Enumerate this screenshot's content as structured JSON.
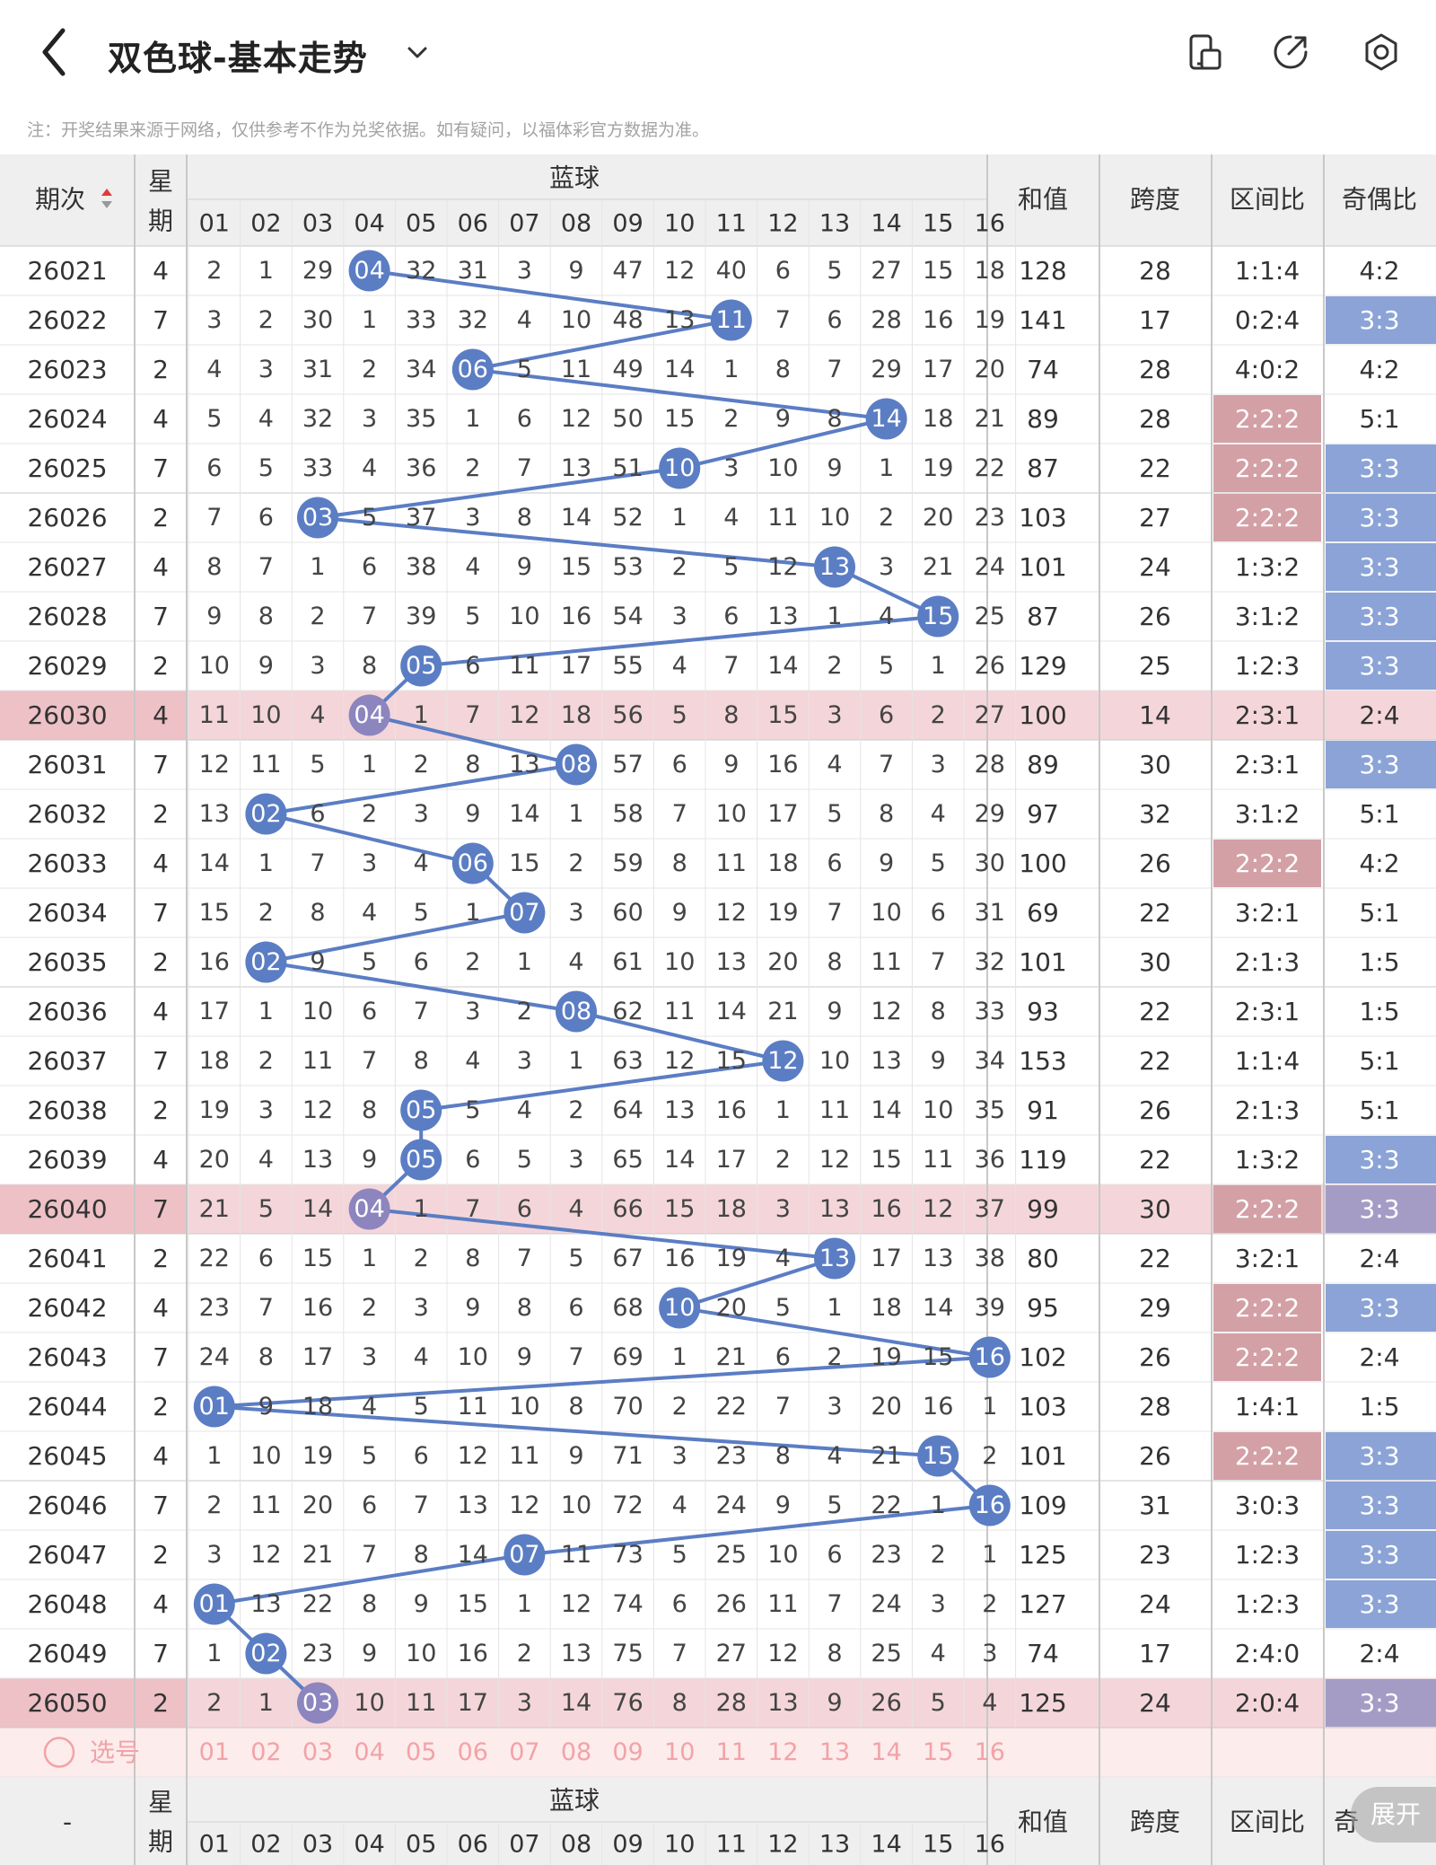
{
  "app": {
    "title": "双色球-基本走势",
    "note": "注：开奖结果来源于网络，仅供参考不作为兑奖依据。如有疑问，以福体彩官方数据为准。"
  },
  "icons": {
    "back": "back-arrow-icon",
    "dropdown": "chevron-down-icon",
    "toolbar": [
      "phone-layout-icon",
      "share-icon",
      "settings-icon"
    ]
  },
  "colors": {
    "ball_blue": "#5b7dc4",
    "ball_purple": "#8c85be",
    "line_blue": "#5b7dc4",
    "highlight_row": "#f4d6da",
    "highlight_sticky": "#edc1c6",
    "odd_even_blue": "#8ba3d6",
    "odd_even_purple": "#a59cc6",
    "zone_red": "#d3a0a6",
    "header_bg": "#efefef",
    "select_row": "#fdecec",
    "select_text": "#f1a3a8"
  },
  "header": {
    "period": "期次",
    "weekday": "星期",
    "blue_group": "蓝球",
    "sum": "和值",
    "span": "跨度",
    "zone_ratio": "区间比",
    "odd_even": "奇偶比",
    "col_labels": [
      "01",
      "02",
      "03",
      "04",
      "05",
      "06",
      "07",
      "08",
      "09",
      "10",
      "11",
      "12",
      "13",
      "14",
      "15",
      "16"
    ]
  },
  "footer": {
    "period": "-",
    "weekday": "星期",
    "blue_group": "蓝球",
    "sum": "和值",
    "span": "跨度",
    "zone_ratio": "区间比",
    "odd_even": "奇",
    "expand_button": "展开"
  },
  "select_row": {
    "label": "选号",
    "numbers": [
      "01",
      "02",
      "03",
      "04",
      "05",
      "06",
      "07",
      "08",
      "09",
      "10",
      "11",
      "12",
      "13",
      "14",
      "15",
      "16"
    ]
  },
  "rows": [
    {
      "period": "26021",
      "weekday": "4",
      "cells": [
        2,
        1,
        29,
        "04",
        32,
        31,
        3,
        9,
        47,
        12,
        40,
        6,
        5,
        27,
        15,
        18
      ],
      "sum": "128",
      "span": "28",
      "zone": "1:1:4",
      "oe": "4:2",
      "ball": 4
    },
    {
      "period": "26022",
      "weekday": "7",
      "cells": [
        3,
        2,
        30,
        1,
        33,
        32,
        4,
        10,
        48,
        13,
        "11",
        7,
        6,
        28,
        16,
        19
      ],
      "sum": "141",
      "span": "17",
      "zone": "0:2:4",
      "oe": "3:3",
      "ball": 11
    },
    {
      "period": "26023",
      "weekday": "2",
      "cells": [
        4,
        3,
        31,
        2,
        34,
        "06",
        5,
        11,
        49,
        14,
        1,
        8,
        7,
        29,
        17,
        20
      ],
      "sum": "74",
      "span": "28",
      "zone": "4:0:2",
      "oe": "4:2",
      "ball": 6
    },
    {
      "period": "26024",
      "weekday": "4",
      "cells": [
        5,
        4,
        32,
        3,
        35,
        1,
        6,
        12,
        50,
        15,
        2,
        9,
        8,
        "14",
        18,
        21
      ],
      "sum": "89",
      "span": "28",
      "zone": "2:2:2",
      "oe": "5:1",
      "ball": 14
    },
    {
      "period": "26025",
      "weekday": "7",
      "cells": [
        6,
        5,
        33,
        4,
        36,
        2,
        7,
        13,
        51,
        "10",
        3,
        10,
        9,
        1,
        19,
        22
      ],
      "sum": "87",
      "span": "22",
      "zone": "2:2:2",
      "oe": "3:3",
      "ball": 10
    },
    {
      "period": "26026",
      "weekday": "2",
      "cells": [
        7,
        6,
        "03",
        5,
        37,
        3,
        8,
        14,
        52,
        1,
        4,
        11,
        10,
        2,
        20,
        23
      ],
      "sum": "103",
      "span": "27",
      "zone": "2:2:2",
      "oe": "3:3",
      "ball": 3
    },
    {
      "period": "26027",
      "weekday": "4",
      "cells": [
        8,
        7,
        1,
        6,
        38,
        4,
        9,
        15,
        53,
        2,
        5,
        12,
        "13",
        3,
        21,
        24
      ],
      "sum": "101",
      "span": "24",
      "zone": "1:3:2",
      "oe": "3:3",
      "ball": 13
    },
    {
      "period": "26028",
      "weekday": "7",
      "cells": [
        9,
        8,
        2,
        7,
        39,
        5,
        10,
        16,
        54,
        3,
        6,
        13,
        1,
        4,
        "15",
        25
      ],
      "sum": "87",
      "span": "26",
      "zone": "3:1:2",
      "oe": "3:3",
      "ball": 15
    },
    {
      "period": "26029",
      "weekday": "2",
      "cells": [
        10,
        9,
        3,
        8,
        "05",
        6,
        11,
        17,
        55,
        4,
        7,
        14,
        2,
        5,
        1,
        26
      ],
      "sum": "129",
      "span": "25",
      "zone": "1:2:3",
      "oe": "3:3",
      "ball": 5
    },
    {
      "period": "26030",
      "weekday": "4",
      "cells": [
        11,
        10,
        4,
        "04",
        1,
        7,
        12,
        18,
        56,
        5,
        8,
        15,
        3,
        6,
        2,
        27
      ],
      "sum": "100",
      "span": "14",
      "zone": "2:3:1",
      "oe": "2:4",
      "ball": 4,
      "highlight": true
    },
    {
      "period": "26031",
      "weekday": "7",
      "cells": [
        12,
        11,
        5,
        1,
        2,
        8,
        13,
        "08",
        57,
        6,
        9,
        16,
        4,
        7,
        3,
        28
      ],
      "sum": "89",
      "span": "30",
      "zone": "2:3:1",
      "oe": "3:3",
      "ball": 8
    },
    {
      "period": "26032",
      "weekday": "2",
      "cells": [
        13,
        "02",
        6,
        2,
        3,
        9,
        14,
        1,
        58,
        7,
        10,
        17,
        5,
        8,
        4,
        29
      ],
      "sum": "97",
      "span": "32",
      "zone": "3:1:2",
      "oe": "5:1",
      "ball": 2
    },
    {
      "period": "26033",
      "weekday": "4",
      "cells": [
        14,
        1,
        7,
        3,
        4,
        "06",
        15,
        2,
        59,
        8,
        11,
        18,
        6,
        9,
        5,
        30
      ],
      "sum": "100",
      "span": "26",
      "zone": "2:2:2",
      "oe": "4:2",
      "ball": 6
    },
    {
      "period": "26034",
      "weekday": "7",
      "cells": [
        15,
        2,
        8,
        4,
        5,
        1,
        "07",
        3,
        60,
        9,
        12,
        19,
        7,
        10,
        6,
        31
      ],
      "sum": "69",
      "span": "22",
      "zone": "3:2:1",
      "oe": "5:1",
      "ball": 7
    },
    {
      "period": "26035",
      "weekday": "2",
      "cells": [
        16,
        "02",
        9,
        5,
        6,
        2,
        1,
        4,
        61,
        10,
        13,
        20,
        8,
        11,
        7,
        32
      ],
      "sum": "101",
      "span": "30",
      "zone": "2:1:3",
      "oe": "1:5",
      "ball": 2
    },
    {
      "period": "26036",
      "weekday": "4",
      "cells": [
        17,
        1,
        10,
        6,
        7,
        3,
        2,
        "08",
        62,
        11,
        14,
        21,
        9,
        12,
        8,
        33
      ],
      "sum": "93",
      "span": "22",
      "zone": "2:3:1",
      "oe": "1:5",
      "ball": 8
    },
    {
      "period": "26037",
      "weekday": "7",
      "cells": [
        18,
        2,
        11,
        7,
        8,
        4,
        3,
        1,
        63,
        12,
        15,
        "12",
        10,
        13,
        9,
        34
      ],
      "sum": "153",
      "span": "22",
      "zone": "1:1:4",
      "oe": "5:1",
      "ball": 12
    },
    {
      "period": "26038",
      "weekday": "2",
      "cells": [
        19,
        3,
        12,
        8,
        "05",
        5,
        4,
        2,
        64,
        13,
        16,
        1,
        11,
        14,
        10,
        35
      ],
      "sum": "91",
      "span": "26",
      "zone": "2:1:3",
      "oe": "5:1",
      "ball": 5
    },
    {
      "period": "26039",
      "weekday": "4",
      "cells": [
        20,
        4,
        13,
        9,
        "05",
        6,
        5,
        3,
        65,
        14,
        17,
        2,
        12,
        15,
        11,
        36
      ],
      "sum": "119",
      "span": "22",
      "zone": "1:3:2",
      "oe": "3:3",
      "ball": 5
    },
    {
      "period": "26040",
      "weekday": "7",
      "cells": [
        21,
        5,
        14,
        "04",
        1,
        7,
        6,
        4,
        66,
        15,
        18,
        3,
        13,
        16,
        12,
        37
      ],
      "sum": "99",
      "span": "30",
      "zone": "2:2:2",
      "oe": "3:3",
      "ball": 4,
      "highlight": true
    },
    {
      "period": "26041",
      "weekday": "2",
      "cells": [
        22,
        6,
        15,
        1,
        2,
        8,
        7,
        5,
        67,
        16,
        19,
        4,
        "13",
        17,
        13,
        38
      ],
      "sum": "80",
      "span": "22",
      "zone": "3:2:1",
      "oe": "2:4",
      "ball": 13
    },
    {
      "period": "26042",
      "weekday": "4",
      "cells": [
        23,
        7,
        16,
        2,
        3,
        9,
        8,
        6,
        68,
        "10",
        20,
        5,
        1,
        18,
        14,
        39
      ],
      "sum": "95",
      "span": "29",
      "zone": "2:2:2",
      "oe": "3:3",
      "ball": 10
    },
    {
      "period": "26043",
      "weekday": "7",
      "cells": [
        24,
        8,
        17,
        3,
        4,
        10,
        9,
        7,
        69,
        1,
        21,
        6,
        2,
        19,
        15,
        "16"
      ],
      "sum": "102",
      "span": "26",
      "zone": "2:2:2",
      "oe": "2:4",
      "ball": 16
    },
    {
      "period": "26044",
      "weekday": "2",
      "cells": [
        "01",
        9,
        18,
        4,
        5,
        11,
        10,
        8,
        70,
        2,
        22,
        7,
        3,
        20,
        16,
        1
      ],
      "sum": "103",
      "span": "28",
      "zone": "1:4:1",
      "oe": "1:5",
      "ball": 1
    },
    {
      "period": "26045",
      "weekday": "4",
      "cells": [
        1,
        10,
        19,
        5,
        6,
        12,
        11,
        9,
        71,
        3,
        23,
        8,
        4,
        21,
        "15",
        2
      ],
      "sum": "101",
      "span": "26",
      "zone": "2:2:2",
      "oe": "3:3",
      "ball": 15
    },
    {
      "period": "26046",
      "weekday": "7",
      "cells": [
        2,
        11,
        20,
        6,
        7,
        13,
        12,
        10,
        72,
        4,
        24,
        9,
        5,
        22,
        1,
        "16"
      ],
      "sum": "109",
      "span": "31",
      "zone": "3:0:3",
      "oe": "3:3",
      "ball": 16
    },
    {
      "period": "26047",
      "weekday": "2",
      "cells": [
        3,
        12,
        21,
        7,
        8,
        14,
        "07",
        11,
        73,
        5,
        25,
        10,
        6,
        23,
        2,
        1
      ],
      "sum": "125",
      "span": "23",
      "zone": "1:2:3",
      "oe": "3:3",
      "ball": 7
    },
    {
      "period": "26048",
      "weekday": "4",
      "cells": [
        "01",
        13,
        22,
        8,
        9,
        15,
        1,
        12,
        74,
        6,
        26,
        11,
        7,
        24,
        3,
        2
      ],
      "sum": "127",
      "span": "24",
      "zone": "1:2:3",
      "oe": "3:3",
      "ball": 1
    },
    {
      "period": "26049",
      "weekday": "7",
      "cells": [
        1,
        "02",
        23,
        9,
        10,
        16,
        2,
        13,
        75,
        7,
        27,
        12,
        8,
        25,
        4,
        3
      ],
      "sum": "74",
      "span": "17",
      "zone": "2:4:0",
      "oe": "2:4",
      "ball": 2
    },
    {
      "period": "26050",
      "weekday": "2",
      "cells": [
        2,
        1,
        "03",
        10,
        11,
        17,
        3,
        14,
        76,
        8,
        28,
        13,
        9,
        26,
        5,
        4
      ],
      "sum": "125",
      "span": "24",
      "zone": "2:0:4",
      "oe": "3:3",
      "ball": 3,
      "highlight": true
    }
  ]
}
